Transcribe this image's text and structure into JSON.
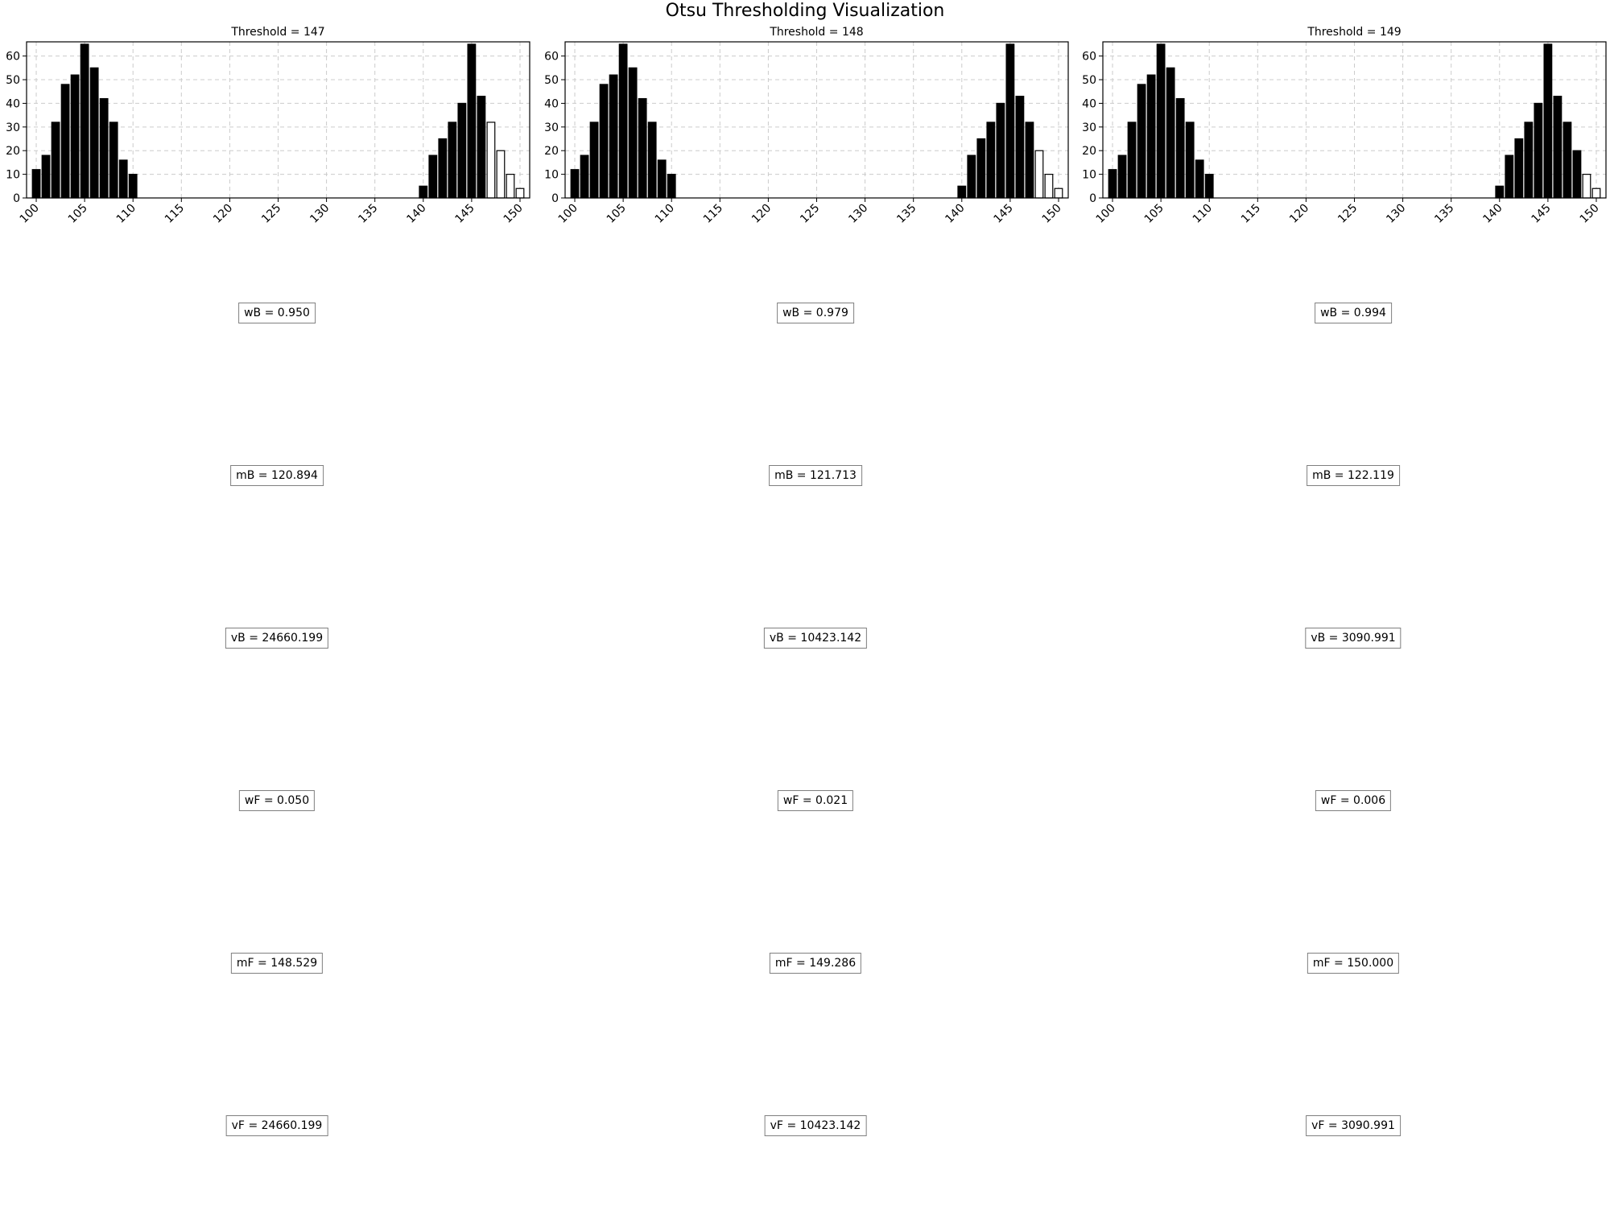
{
  "chart_data": {
    "type": "bar",
    "title": "Otsu Thresholding Visualization",
    "xlim": [
      99,
      151
    ],
    "ylim": [
      0,
      66
    ],
    "xticks": [
      100,
      105,
      110,
      115,
      120,
      125,
      130,
      135,
      140,
      145,
      150
    ],
    "yticks": [
      0,
      10,
      20,
      30,
      40,
      50,
      60
    ],
    "grid": true,
    "histogram": {
      "x": [
        100,
        101,
        102,
        103,
        104,
        105,
        106,
        107,
        108,
        109,
        110,
        140,
        141,
        142,
        143,
        144,
        145,
        146,
        147,
        148,
        149,
        150
      ],
      "counts": [
        12,
        18,
        32,
        48,
        52,
        65,
        55,
        42,
        32,
        16,
        10,
        5,
        18,
        25,
        32,
        40,
        65,
        43,
        32,
        20,
        10,
        4
      ]
    },
    "panels": [
      {
        "title": "Threshold = 147",
        "threshold": 147,
        "stats": [
          {
            "key": "wB",
            "value": "0.950"
          },
          {
            "key": "mB",
            "value": "120.894"
          },
          {
            "key": "vB",
            "value": "24660.199"
          },
          {
            "key": "wF",
            "value": "0.050"
          },
          {
            "key": "mF",
            "value": "148.529"
          },
          {
            "key": "vF",
            "value": "24660.199"
          }
        ]
      },
      {
        "title": "Threshold = 148",
        "threshold": 148,
        "stats": [
          {
            "key": "wB",
            "value": "0.979"
          },
          {
            "key": "mB",
            "value": "121.713"
          },
          {
            "key": "vB",
            "value": "10423.142"
          },
          {
            "key": "wF",
            "value": "0.021"
          },
          {
            "key": "mF",
            "value": "149.286"
          },
          {
            "key": "vF",
            "value": "10423.142"
          }
        ]
      },
      {
        "title": "Threshold = 149",
        "threshold": 149,
        "stats": [
          {
            "key": "wB",
            "value": "0.994"
          },
          {
            "key": "mB",
            "value": "122.119"
          },
          {
            "key": "vB",
            "value": "3090.991"
          },
          {
            "key": "wF",
            "value": "0.006"
          },
          {
            "key": "mF",
            "value": "150.000"
          },
          {
            "key": "vF",
            "value": "3090.991"
          }
        ]
      }
    ]
  },
  "colors": {
    "background_bar": "#000000",
    "foreground_bar": "#ffffff",
    "bar_edge": "#000000",
    "grid": "#cccccc",
    "stat_box_border": "#7f7f7f"
  }
}
